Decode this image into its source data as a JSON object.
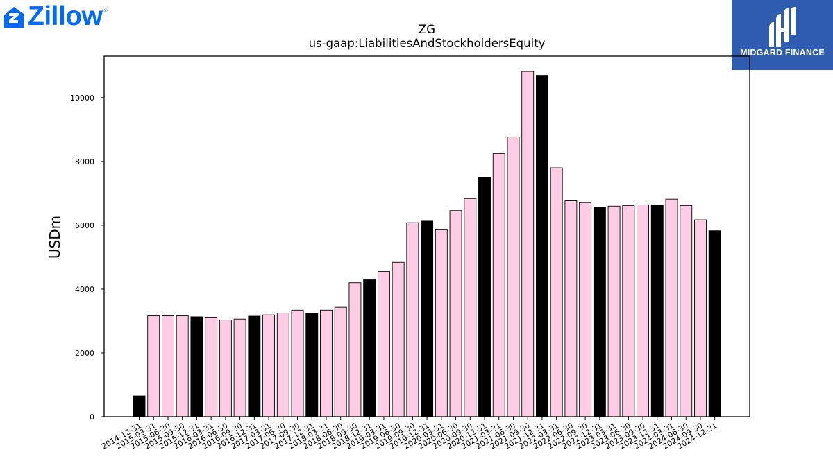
{
  "brand": {
    "name": "Zillow",
    "reg_mark": "®",
    "color": "#006aff",
    "icon": "zillow-house-icon"
  },
  "badge": {
    "name": "MIDGARD FINANCE",
    "background": "#2f5caf",
    "icon": "midgard-logo-icon"
  },
  "chart_data": {
    "type": "bar",
    "title": "ZG",
    "subtitle": "us-gaap:LiabilitiesAndStockholdersEquity",
    "xlabel": "",
    "ylabel": "USDm",
    "ylim": [
      0,
      11300
    ],
    "yticks": [
      0,
      2000,
      4000,
      6000,
      8000,
      10000
    ],
    "grid": false,
    "legend": "none",
    "colors": {
      "default": "#ffcce6",
      "highlight": "#000000",
      "edge": "#000000"
    },
    "categories": [
      "2014-12-31",
      "2015-03-31",
      "2015-06-30",
      "2015-09-30",
      "2015-12-31",
      "2016-03-31",
      "2016-06-30",
      "2016-09-30",
      "2016-12-31",
      "2017-03-31",
      "2017-06-30",
      "2017-09-30",
      "2017-12-31",
      "2018-03-31",
      "2018-06-30",
      "2018-09-30",
      "2018-12-31",
      "2019-03-31",
      "2019-06-30",
      "2019-09-30",
      "2019-12-31",
      "2020-03-31",
      "2020-06-30",
      "2020-09-30",
      "2020-12-31",
      "2021-03-31",
      "2021-06-30",
      "2021-09-30",
      "2021-12-31",
      "2022-03-31",
      "2022-06-30",
      "2022-09-30",
      "2022-12-31",
      "2023-03-31",
      "2023-06-30",
      "2023-09-30",
      "2023-12-31",
      "2024-03-31",
      "2024-06-30",
      "2024-09-30",
      "2024-12-31"
    ],
    "values": [
      650,
      3160,
      3160,
      3160,
      3130,
      3120,
      3030,
      3060,
      3150,
      3190,
      3250,
      3340,
      3230,
      3340,
      3430,
      4200,
      4290,
      4550,
      4840,
      6080,
      6130,
      5860,
      6460,
      6840,
      7490,
      8250,
      8770,
      10820,
      10700,
      7800,
      6770,
      6710,
      6560,
      6600,
      6620,
      6640,
      6640,
      6820,
      6620,
      6170,
      5830
    ],
    "highlight": [
      true,
      false,
      false,
      false,
      true,
      false,
      false,
      false,
      true,
      false,
      false,
      false,
      true,
      false,
      false,
      false,
      true,
      false,
      false,
      false,
      true,
      false,
      false,
      false,
      true,
      false,
      false,
      false,
      true,
      false,
      false,
      false,
      true,
      false,
      false,
      false,
      true,
      false,
      false,
      false,
      true
    ]
  }
}
